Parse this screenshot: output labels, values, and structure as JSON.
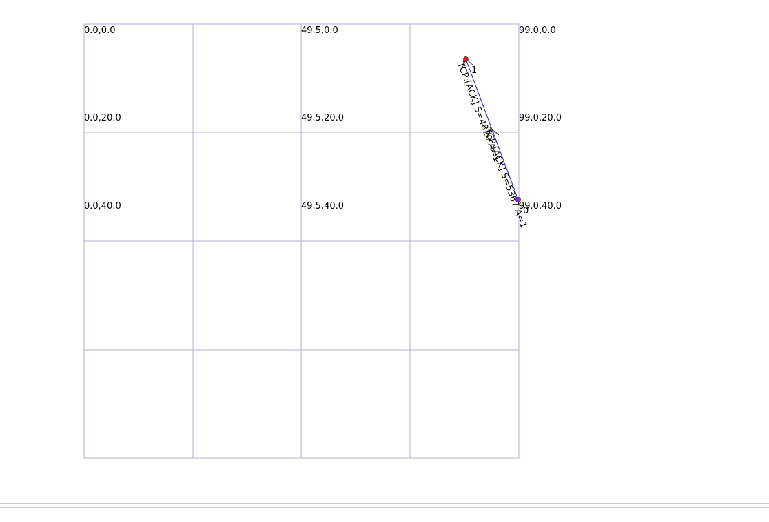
{
  "grid": {
    "coord_labels": [
      {
        "text": "0.0,0.0"
      },
      {
        "text": "49.5,0.0"
      },
      {
        "text": "99.0,0.0"
      },
      {
        "text": "0.0,20.0"
      },
      {
        "text": "49.5,20.0"
      },
      {
        "text": "99.0,20.0"
      },
      {
        "text": "0.0,40.0"
      },
      {
        "text": "49.5,40.0"
      },
      {
        "text": "99.0,40.0"
      }
    ]
  },
  "nodes": [
    {
      "id": "1",
      "x": 87.0,
      "y": 7.8,
      "color": "#e02020"
    },
    {
      "id": "0",
      "x": 99.0,
      "y": 40.1,
      "color": "#8a2be2"
    }
  ],
  "packets": [
    {
      "label": "TCP:[ACK] S=4820 A=1"
    },
    {
      "label": "TCP:[ACK] S=5367 A=1"
    }
  ],
  "link": {
    "color": "#1a1ae0"
  }
}
